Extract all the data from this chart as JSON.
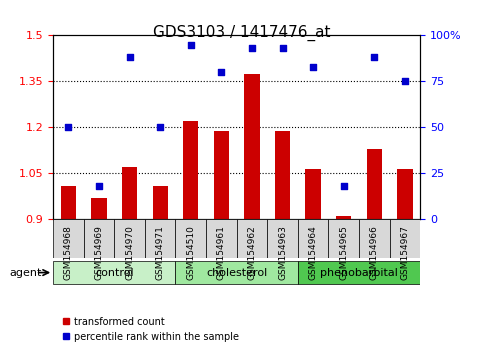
{
  "title": "GDS3103 / 1417476_at",
  "samples": [
    "GSM154968",
    "GSM154969",
    "GSM154970",
    "GSM154971",
    "GSM154510",
    "GSM154961",
    "GSM154962",
    "GSM154963",
    "GSM154964",
    "GSM154965",
    "GSM154966",
    "GSM154967"
  ],
  "bar_values": [
    1.01,
    0.97,
    1.07,
    1.01,
    1.22,
    1.19,
    1.375,
    1.19,
    1.065,
    0.91,
    1.13,
    1.065
  ],
  "scatter_values": [
    50,
    18,
    88,
    50,
    95,
    80,
    93,
    93,
    83,
    18,
    88,
    75
  ],
  "groups": [
    {
      "label": "control",
      "start": 0,
      "end": 4,
      "color": "#c8f0c8"
    },
    {
      "label": "cholesterol",
      "start": 4,
      "end": 8,
      "color": "#a0e8a0"
    },
    {
      "label": "phenobarbital",
      "start": 8,
      "end": 12,
      "color": "#50c850"
    }
  ],
  "ylim_left": [
    0.9,
    1.5
  ],
  "ylim_right": [
    0,
    100
  ],
  "yticks_left": [
    0.9,
    1.05,
    1.2,
    1.35,
    1.5
  ],
  "yticks_right": [
    0,
    25,
    50,
    75,
    100
  ],
  "ytick_labels_right": [
    "0",
    "25",
    "50",
    "75",
    "100%"
  ],
  "bar_color": "#cc0000",
  "scatter_color": "#0000cc",
  "bar_base": 0.9,
  "hlines": [
    1.05,
    1.2,
    1.35
  ],
  "agent_label": "agent",
  "legend_bar": "transformed count",
  "legend_scatter": "percentile rank within the sample",
  "plot_bg": "#f0f0f0",
  "group_bg": "#d0d0d0"
}
